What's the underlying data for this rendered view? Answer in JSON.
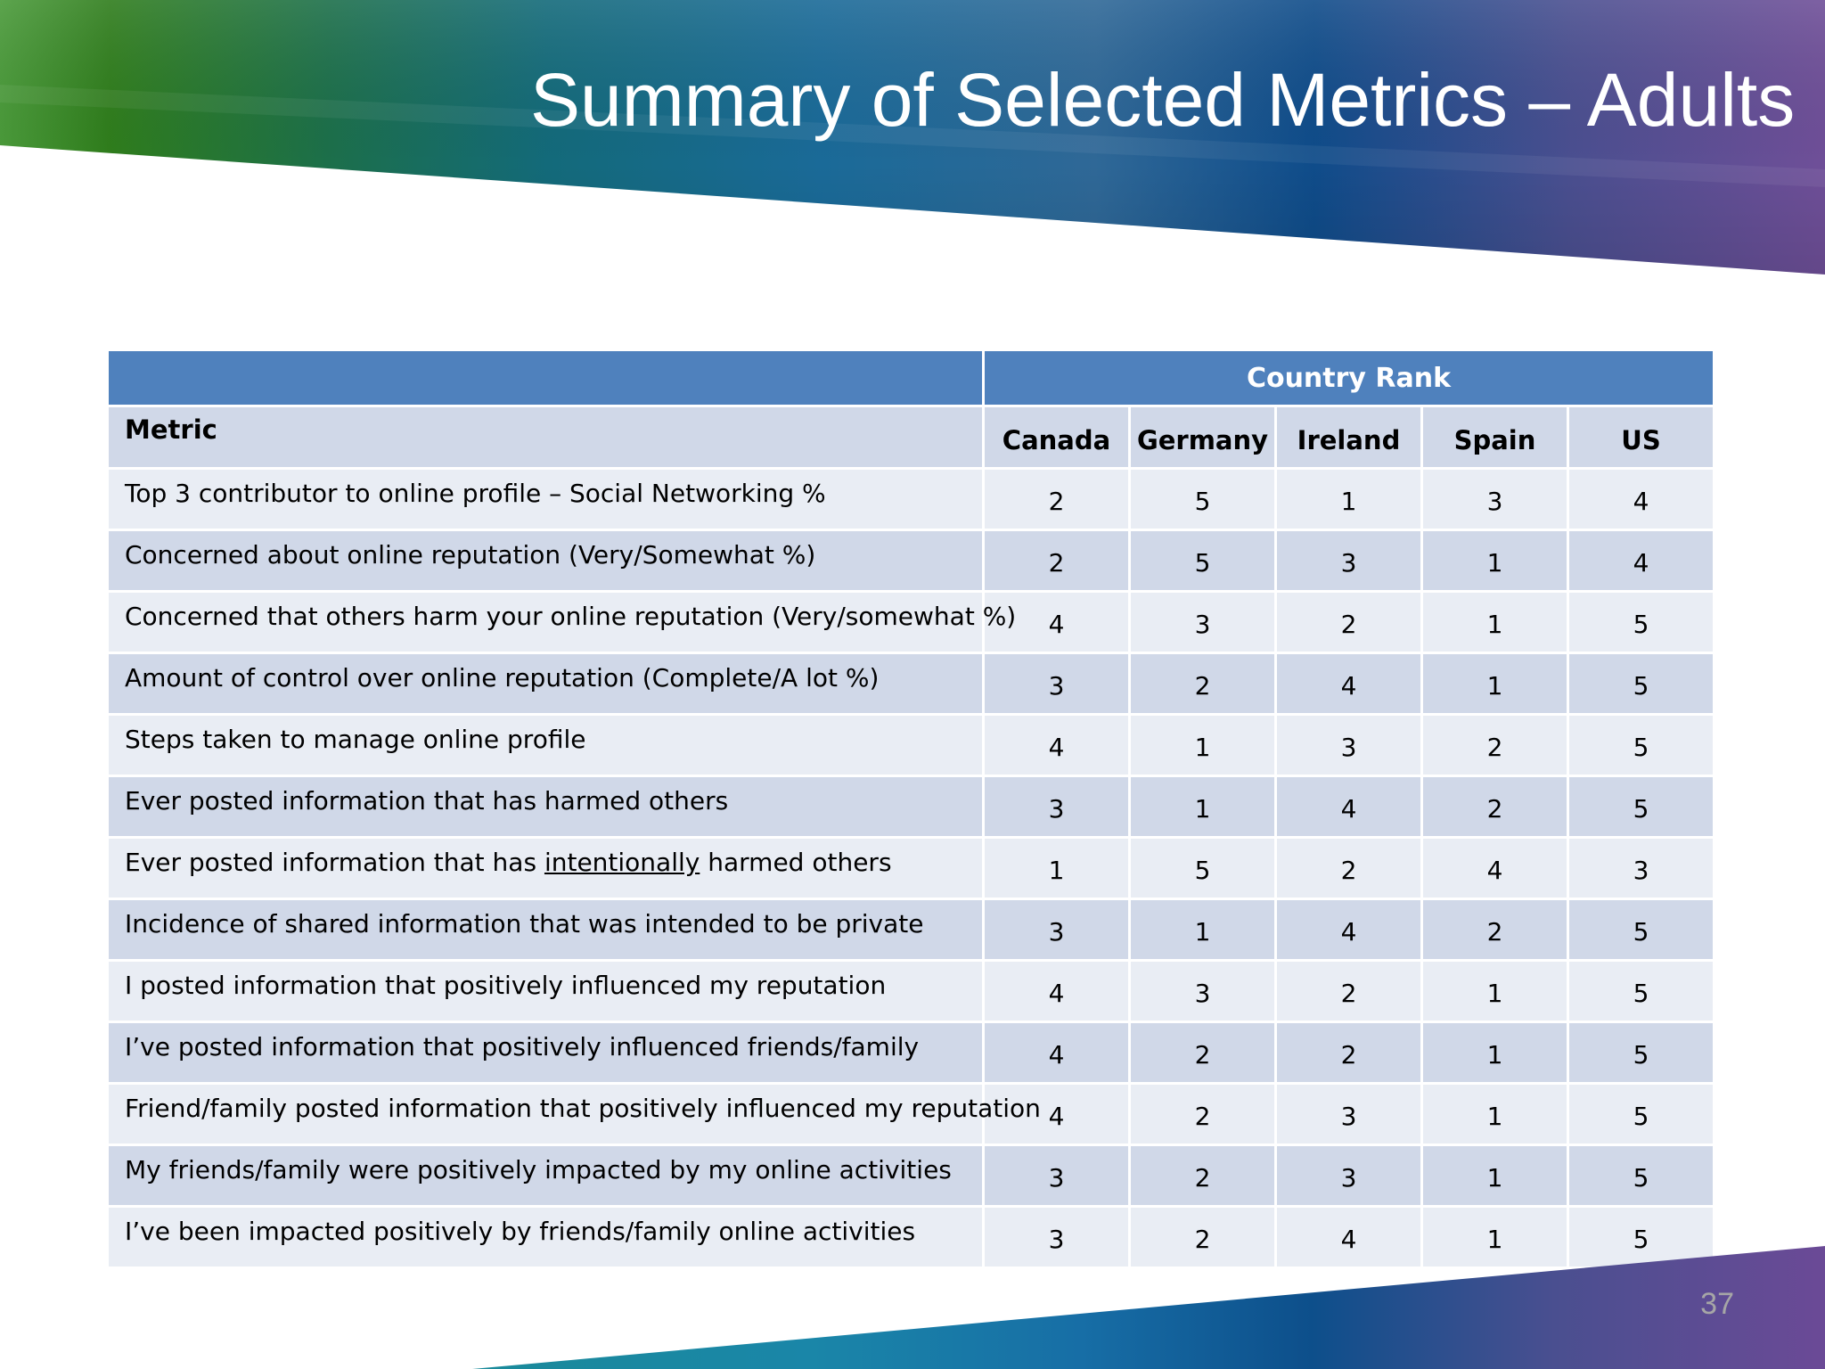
{
  "title": "Summary of Selected Metrics – Adults",
  "table": {
    "group_header": "Country Rank",
    "metric_header": "Metric",
    "countries": [
      "Canada",
      "Germany",
      "Ireland",
      "Spain",
      "US"
    ],
    "rows": [
      {
        "metric": "Top 3 contributor to online profile – Social Networking %",
        "ranks": [
          "2",
          "5",
          "1",
          "3",
          "4"
        ]
      },
      {
        "metric": "Concerned about online reputation (Very/Somewhat %)",
        "ranks": [
          "2",
          "5",
          "3",
          "1",
          "4"
        ]
      },
      {
        "metric": "Concerned that others harm your online reputation (Very/somewhat %)",
        "ranks": [
          "4",
          "3",
          "2",
          "1",
          "5"
        ]
      },
      {
        "metric": "Amount of control over online reputation (Complete/A lot %)",
        "ranks": [
          "3",
          "2",
          "4",
          "1",
          "5"
        ]
      },
      {
        "metric": "Steps taken to manage online profile",
        "ranks": [
          "4",
          "1",
          "3",
          "2",
          "5"
        ]
      },
      {
        "metric": "Ever posted information that has harmed others",
        "ranks": [
          "3",
          "1",
          "4",
          "2",
          "5"
        ]
      },
      {
        "metric_before": "Ever posted information that has ",
        "metric_emphasis": "intentionally",
        "metric_after": " harmed others",
        "ranks": [
          "1",
          "5",
          "2",
          "4",
          "3"
        ]
      },
      {
        "metric": "Incidence of shared information that was intended to be private",
        "ranks": [
          "3",
          "1",
          "4",
          "2",
          "5"
        ]
      },
      {
        "metric": "I posted information that positively influenced my reputation",
        "ranks": [
          "4",
          "3",
          "2",
          "1",
          "5"
        ]
      },
      {
        "metric": "I’ve posted information that positively influenced friends/family",
        "ranks": [
          "4",
          "2",
          "2",
          "1",
          "5"
        ]
      },
      {
        "metric": "Friend/family posted information that positively influenced my reputation",
        "ranks": [
          "4",
          "2",
          "3",
          "1",
          "5"
        ]
      },
      {
        "metric": "My friends/family were positively impacted by my online activities",
        "ranks": [
          "3",
          "2",
          "3",
          "1",
          "5"
        ]
      },
      {
        "metric": "I’ve been impacted positively by friends/family online activities",
        "ranks": [
          "3",
          "2",
          "4",
          "1",
          "5"
        ]
      }
    ]
  },
  "page_number": "37",
  "colors": {
    "header_band": "#4f81bd",
    "row_dark": "#d0d8e8",
    "row_light": "#e9edf4",
    "banner_green": "#3e8f2a",
    "banner_blue": "#0d4f8b",
    "banner_purple": "#6b4a96"
  }
}
